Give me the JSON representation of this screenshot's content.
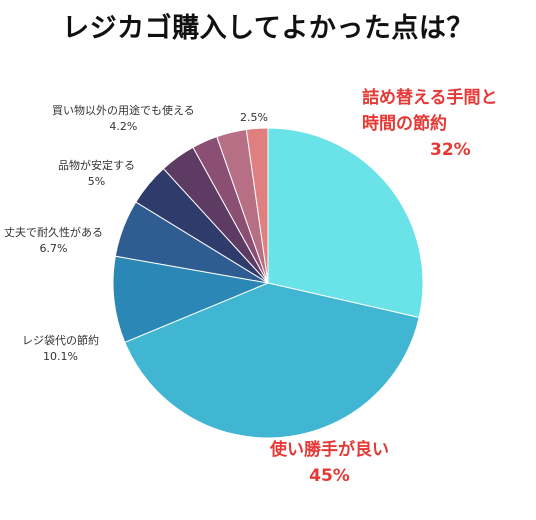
{
  "chart_data": {
    "type": "pie",
    "title": "レジカゴ購入してよかった点は？",
    "slices": [
      {
        "label_lines": [
          "詰め替える手間と",
          "時間の節約"
        ],
        "value": 32,
        "value_label": "32%",
        "color": "#6ae3e8"
      },
      {
        "label_lines": [
          "使い勝手が良い"
        ],
        "value": 45,
        "value_label": "45%",
        "color": "#40b6d3"
      },
      {
        "label_lines": [
          "レジ袋代の節約"
        ],
        "value": 10.1,
        "value_label": "10.1%",
        "color": "#2b87b6"
      },
      {
        "label_lines": [
          "丈夫で耐久性がある"
        ],
        "value": 6.7,
        "value_label": "6.7%",
        "color": "#2f5d92"
      },
      {
        "label_lines": [
          "品物が安定する"
        ],
        "value": 5,
        "value_label": "5%",
        "color": "#2f3b6a"
      },
      {
        "label_lines": [
          "買い物以外の用途でも使える"
        ],
        "value": 4.2,
        "value_label": "4.2%",
        "color": "#5e3b62"
      },
      {
        "label_lines": [
          ""
        ],
        "value": 3.0,
        "value_label": "",
        "color": "#8a4f72"
      },
      {
        "label_lines": [
          ""
        ],
        "value": 3.5,
        "value_label": "",
        "color": "#b66f84"
      },
      {
        "label_lines": [
          ""
        ],
        "value": 2.5,
        "value_label": "2.5%",
        "color": "#e07f80"
      }
    ]
  }
}
